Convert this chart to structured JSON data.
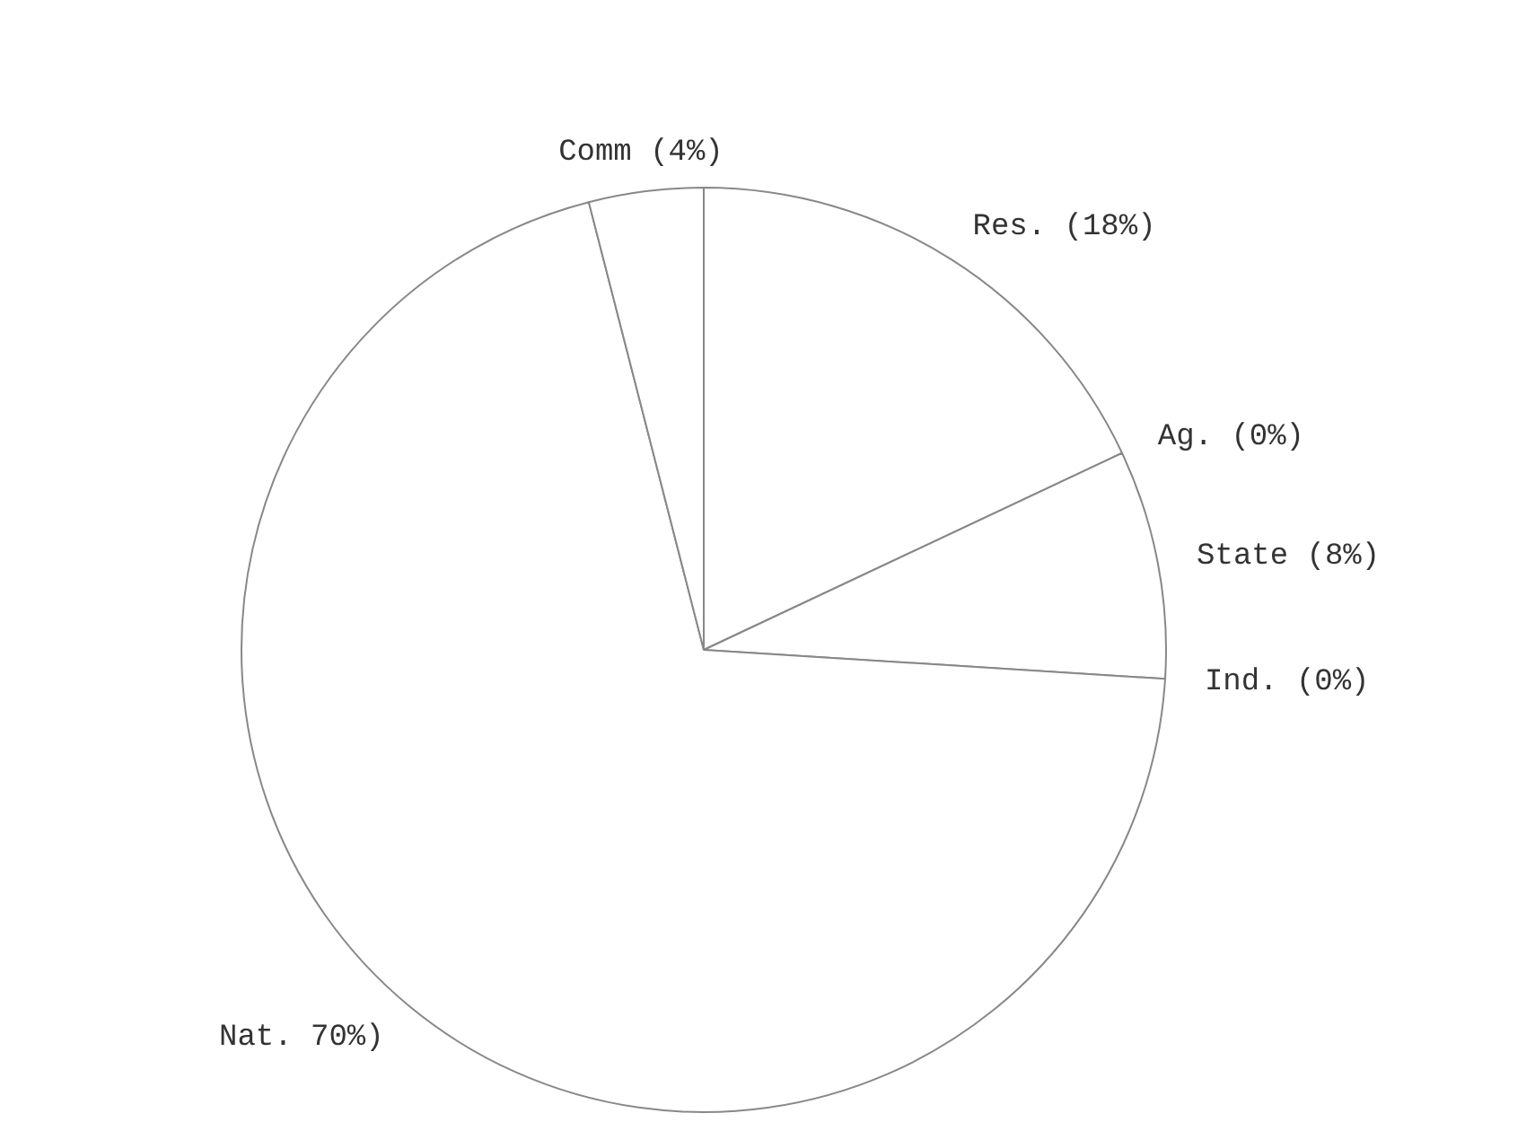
{
  "chart_data": {
    "type": "pie",
    "categories": [
      "Res. (18%)",
      "Ag. (0%)",
      "State (8%)",
      "Ind. (0%)",
      "Nat. 70%)",
      "Comm (4%)"
    ],
    "values": [
      18,
      0,
      8,
      0,
      70,
      4
    ],
    "colors": [
      "#ffffff",
      "#ffffff",
      "#ffffff",
      "#ffffff",
      "#ffffff",
      "#ffffff"
    ]
  }
}
